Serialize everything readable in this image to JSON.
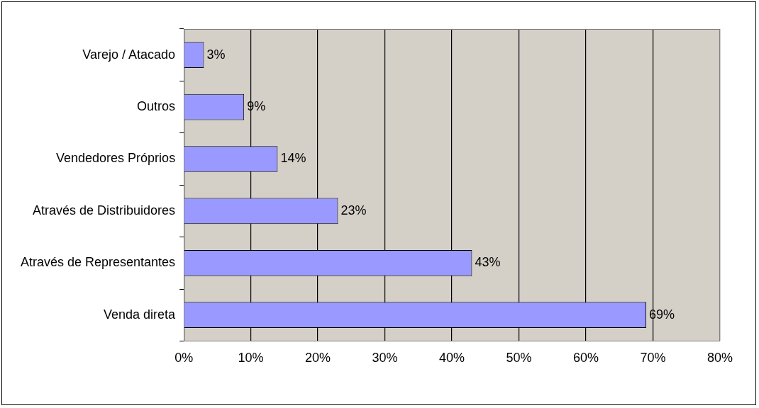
{
  "chart_data": {
    "type": "bar",
    "orientation": "horizontal",
    "categories": [
      "Varejo / Atacado",
      "Outros",
      "Vendedores Próprios",
      "Através de Distribuidores",
      "Através de Representantes",
      "Venda direta"
    ],
    "values": [
      3,
      9,
      14,
      23,
      43,
      69
    ],
    "value_labels": [
      "3%",
      "9%",
      "14%",
      "23%",
      "43%",
      "69%"
    ],
    "color": "#9999ff",
    "xlim": [
      0,
      80
    ],
    "xticks": [
      {
        "value": 0,
        "label": "0%"
      },
      {
        "value": 10,
        "label": "10%"
      },
      {
        "value": 20,
        "label": "20%"
      },
      {
        "value": 30,
        "label": "30%"
      },
      {
        "value": 40,
        "label": "40%"
      },
      {
        "value": 50,
        "label": "50%"
      },
      {
        "value": 60,
        "label": "60%"
      },
      {
        "value": 70,
        "label": "70%"
      },
      {
        "value": 80,
        "label": "80%"
      }
    ],
    "grid": "x",
    "legend": false
  }
}
